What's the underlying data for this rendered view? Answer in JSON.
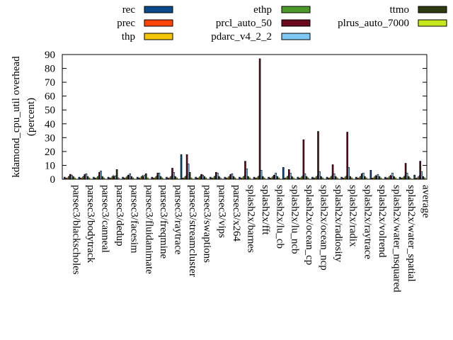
{
  "chart_data": {
    "type": "bar",
    "ylabel": "kdamond_cpu_util overhead\n(percent)",
    "ylim": [
      0,
      90
    ],
    "yticks": [
      0,
      10,
      20,
      30,
      40,
      50,
      60,
      70,
      80,
      90
    ],
    "grid": false,
    "legend_position": "top",
    "categories": [
      "parsec3/blackscholes",
      "parsec3/bodytrack",
      "parsec3/canneal",
      "parsec3/dedup",
      "parsec3/facesim",
      "parsec3/fluidanimate",
      "parsec3/freqmine",
      "parsec3/raytrace",
      "parsec3/streamcluster",
      "parsec3/swaptions",
      "parsec3/vips",
      "parsec3/x264",
      "splash2x/barnes",
      "splash2x/fft",
      "splash2x/lu_cb",
      "splash2x/lu_ncb",
      "splash2x/ocean_cp",
      "splash2x/ocean_ncp",
      "splash2x/radiosity",
      "splash2x/radix",
      "splash2x/raytrace",
      "splash2x/volrend",
      "splash2x/water_nsquared",
      "splash2x/water_spatial",
      "average"
    ],
    "series": [
      {
        "name": "rec",
        "color": "#0a4a8c",
        "values": [
          1.5,
          1.5,
          1.5,
          1.5,
          1.5,
          1.5,
          1.5,
          1.5,
          17.8,
          1.5,
          1.5,
          1.5,
          1.5,
          1.5,
          1.5,
          8.5,
          1.5,
          1.5,
          1.5,
          1.5,
          1.5,
          6.5,
          1.5,
          1.5,
          3.0
        ]
      },
      {
        "name": "prec",
        "color": "#ff4500",
        "values": [
          0.8,
          0.8,
          0.8,
          0.8,
          0.8,
          0.8,
          0.8,
          0.8,
          0.8,
          0.8,
          0.8,
          0.8,
          0.8,
          0.8,
          0.8,
          0.8,
          0.8,
          0.8,
          0.8,
          0.8,
          0.8,
          0.8,
          0.8,
          0.8,
          0.8
        ]
      },
      {
        "name": "thp",
        "color": "#f5c400",
        "values": [
          1.0,
          1.0,
          1.0,
          1.0,
          1.0,
          1.0,
          1.0,
          1.0,
          1.0,
          1.0,
          1.0,
          1.0,
          1.0,
          1.0,
          1.0,
          1.0,
          1.0,
          1.0,
          1.0,
          1.0,
          1.0,
          1.0,
          1.0,
          1.0,
          1.0
        ]
      },
      {
        "name": "ethp",
        "color": "#4c9a2a",
        "values": [
          2.0,
          2.0,
          2.0,
          2.0,
          2.0,
          2.0,
          2.0,
          2.0,
          2.0,
          2.0,
          2.0,
          2.0,
          2.0,
          2.0,
          2.0,
          2.0,
          2.0,
          2.0,
          2.0,
          2.0,
          2.0,
          2.0,
          2.0,
          2.0,
          2.0
        ]
      },
      {
        "name": "prcl_auto_50",
        "color": "#6b0a1e",
        "values": [
          3.5,
          3.5,
          5.0,
          2.0,
          3.0,
          2.0,
          4.5,
          8.0,
          17.8,
          3.5,
          5.0,
          3.5,
          13.0,
          87.0,
          3.0,
          7.0,
          28.5,
          34.5,
          10.5,
          34.0,
          4.0,
          2.5,
          2.5,
          11.5,
          13.0
        ]
      },
      {
        "name": "pdarc_v4_2_2",
        "color": "#7ec8f5",
        "values": [
          3.0,
          4.0,
          6.0,
          2.5,
          4.0,
          3.0,
          4.5,
          5.0,
          11.0,
          3.0,
          4.5,
          4.0,
          7.5,
          6.5,
          4.5,
          4.5,
          4.0,
          5.5,
          4.0,
          8.5,
          4.5,
          3.5,
          4.5,
          4.5,
          5.5
        ]
      },
      {
        "name": "ttmo",
        "color": "#2e3a10",
        "values": [
          2.0,
          2.0,
          2.0,
          7.0,
          2.0,
          4.0,
          2.0,
          2.0,
          5.0,
          2.0,
          2.0,
          2.0,
          2.0,
          2.0,
          2.0,
          2.0,
          2.0,
          2.0,
          2.0,
          2.0,
          2.0,
          2.0,
          2.0,
          2.0,
          2.0
        ]
      },
      {
        "name": "plrus_auto_7000",
        "color": "#c8e61e",
        "values": [
          1.0,
          1.0,
          1.0,
          1.0,
          1.0,
          1.0,
          1.0,
          1.0,
          1.0,
          1.0,
          1.0,
          1.0,
          1.0,
          1.0,
          1.0,
          1.0,
          1.0,
          1.0,
          1.0,
          1.0,
          1.0,
          1.0,
          1.0,
          1.0,
          1.0
        ]
      }
    ]
  }
}
